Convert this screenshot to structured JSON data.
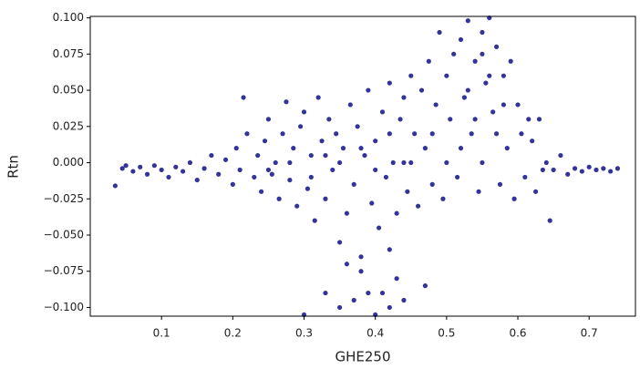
{
  "chart_data": {
    "type": "scatter",
    "x_label": "GHE250",
    "y_label": "Rtn",
    "color": "#000080",
    "xlim": [
      0.0,
      0.765
    ],
    "ylim": [
      -0.106,
      0.101
    ],
    "xticks": [
      0.1,
      0.2,
      0.3,
      0.4,
      0.5,
      0.6,
      0.7
    ],
    "yticks": [
      {
        "value": 0.1,
        "label": "0.100"
      },
      {
        "value": 0.075,
        "label": "0.075"
      },
      {
        "value": 0.05,
        "label": "0.050"
      },
      {
        "value": 0.025,
        "label": "0.025"
      },
      {
        "value": 0,
        "label": "0.000"
      },
      {
        "value": -0.025,
        "label": "−0.025"
      },
      {
        "value": -0.05,
        "label": "−0.050"
      },
      {
        "value": -0.075,
        "label": "−0.075"
      },
      {
        "value": -0.1,
        "label": "−0.100"
      }
    ],
    "x": [
      0.035,
      0.045,
      0.05,
      0.06,
      0.07,
      0.08,
      0.09,
      0.1,
      0.11,
      0.12,
      0.13,
      0.14,
      0.15,
      0.16,
      0.17,
      0.18,
      0.19,
      0.2,
      0.205,
      0.21,
      0.215,
      0.22,
      0.23,
      0.235,
      0.24,
      0.245,
      0.25,
      0.255,
      0.26,
      0.265,
      0.27,
      0.275,
      0.28,
      0.285,
      0.29,
      0.295,
      0.3,
      0.305,
      0.31,
      0.315,
      0.32,
      0.325,
      0.33,
      0.335,
      0.34,
      0.345,
      0.35,
      0.355,
      0.36,
      0.365,
      0.37,
      0.375,
      0.38,
      0.385,
      0.39,
      0.395,
      0.4,
      0.405,
      0.41,
      0.415,
      0.42,
      0.425,
      0.43,
      0.435,
      0.44,
      0.445,
      0.45,
      0.455,
      0.46,
      0.465,
      0.47,
      0.475,
      0.48,
      0.485,
      0.49,
      0.495,
      0.5,
      0.505,
      0.51,
      0.515,
      0.52,
      0.525,
      0.53,
      0.535,
      0.54,
      0.545,
      0.55,
      0.555,
      0.56,
      0.565,
      0.57,
      0.575,
      0.58,
      0.585,
      0.59,
      0.595,
      0.6,
      0.605,
      0.61,
      0.615,
      0.62,
      0.625,
      0.63,
      0.635,
      0.64,
      0.645,
      0.65,
      0.66,
      0.67,
      0.68,
      0.69,
      0.7,
      0.71,
      0.72,
      0.73,
      0.74,
      0.3,
      0.33,
      0.35,
      0.37,
      0.39,
      0.4,
      0.41,
      0.42,
      0.43,
      0.44,
      0.47,
      0.38,
      0.36,
      0.42,
      0.45,
      0.48,
      0.5,
      0.52,
      0.53,
      0.54,
      0.55,
      0.56,
      0.57,
      0.58,
      0.35,
      0.38,
      0.4,
      0.42,
      0.44,
      0.33,
      0.31,
      0.28,
      0.25,
      0.55
    ],
    "y": [
      -0.016,
      -0.004,
      -0.002,
      -0.006,
      -0.003,
      -0.008,
      -0.002,
      -0.005,
      -0.01,
      -0.003,
      -0.006,
      0.0,
      -0.012,
      -0.004,
      0.005,
      -0.008,
      0.002,
      -0.015,
      0.01,
      -0.005,
      0.045,
      0.02,
      -0.01,
      0.005,
      -0.02,
      0.015,
      0.03,
      -0.008,
      0.0,
      -0.025,
      0.02,
      0.042,
      -0.012,
      0.01,
      -0.03,
      0.025,
      0.035,
      -0.018,
      0.005,
      -0.04,
      0.045,
      0.015,
      -0.025,
      0.03,
      -0.005,
      0.02,
      -0.055,
      0.01,
      -0.035,
      0.04,
      -0.015,
      0.025,
      -0.065,
      0.005,
      0.05,
      -0.028,
      0.015,
      -0.045,
      0.035,
      -0.01,
      0.055,
      0.0,
      -0.035,
      0.03,
      0.045,
      -0.02,
      0.06,
      0.02,
      -0.03,
      0.05,
      0.01,
      0.07,
      -0.015,
      0.04,
      0.09,
      -0.025,
      0.06,
      0.03,
      0.075,
      -0.01,
      0.085,
      0.045,
      0.098,
      0.02,
      0.07,
      -0.02,
      0.09,
      0.055,
      0.1,
      0.035,
      0.08,
      -0.015,
      0.06,
      0.01,
      0.07,
      -0.025,
      0.04,
      0.02,
      -0.01,
      0.03,
      0.015,
      -0.02,
      0.03,
      -0.005,
      0.0,
      -0.04,
      -0.005,
      0.005,
      -0.008,
      -0.004,
      -0.006,
      -0.003,
      -0.005,
      -0.004,
      -0.006,
      -0.004,
      -0.105,
      -0.09,
      -0.1,
      -0.095,
      -0.09,
      -0.105,
      -0.09,
      -0.1,
      -0.08,
      -0.095,
      -0.085,
      -0.075,
      -0.07,
      -0.06,
      0.0,
      0.02,
      0.0,
      0.01,
      0.05,
      0.03,
      0.0,
      0.06,
      0.02,
      0.04,
      0.0,
      0.01,
      -0.005,
      0.02,
      0.0,
      0.005,
      -0.01,
      0.0,
      -0.005,
      0.075
    ]
  }
}
